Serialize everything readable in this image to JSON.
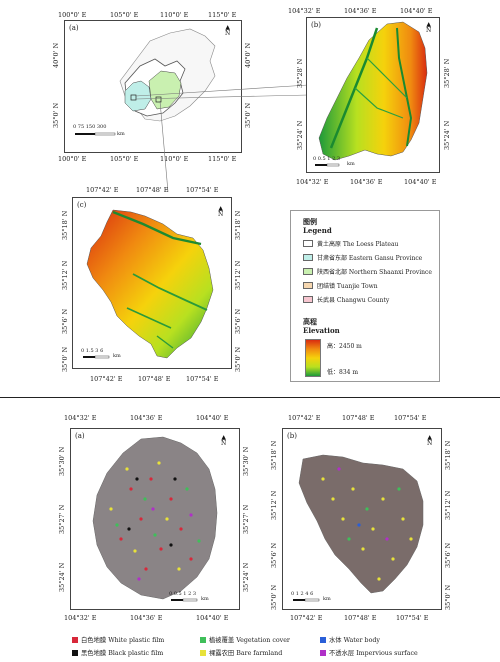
{
  "panel_a_top": {
    "tag": "(a)",
    "lon_top": [
      "100°0' E",
      "105°0' E",
      "110°0' E",
      "115°0' E"
    ],
    "lon_bottom": [
      "100°0' E",
      "105°0' E",
      "110°0' E",
      "115°0' E"
    ],
    "lat_left": [
      "40°0' N",
      "35°0' N"
    ],
    "lat_right": [
      "40°0' N",
      "35°0' N"
    ],
    "scale": "0 75 150     300",
    "scale_unit": "km"
  },
  "panel_b_top": {
    "tag": "(b)",
    "lon_top": [
      "104°32' E",
      "104°36' E",
      "104°40' E"
    ],
    "lon_bottom": [
      "104°32' E",
      "104°36' E",
      "104°40' E"
    ],
    "lat_left": [
      "35°28' N",
      "35°24' N"
    ],
    "lat_right": [
      "35°28' N",
      "35°24' N"
    ],
    "scale": "0 0.5 1   2   3",
    "scale_unit": "km"
  },
  "panel_c_top": {
    "tag": "(c)",
    "lon_top": [
      "107°42' E",
      "107°48' E",
      "107°54' E"
    ],
    "lon_bottom": [
      "107°42' E",
      "107°48' E",
      "107°54' E"
    ],
    "lat_left": [
      "35°18' N",
      "35°12' N",
      "35°6' N",
      "35°0' N"
    ],
    "lat_right": [
      "35°18' N",
      "35°12' N",
      "35°6' N",
      "35°0' N"
    ],
    "scale": "0 1.5 3     6",
    "scale_unit": "km"
  },
  "legend": {
    "title_cn": "图例",
    "title_en": "Legend",
    "items": [
      {
        "label": "黄土高原 The Loess Plateau",
        "color": "#ffffff"
      },
      {
        "label": "甘肃省东部 Eastern Gansu Province",
        "color": "#bfeee8"
      },
      {
        "label": "陕西省北部 Northern Shaanxi Province",
        "color": "#c9f0b0"
      },
      {
        "label": "团结镇 Tuanjie Town",
        "color": "#f6d7b0"
      },
      {
        "label": "长武县 Changwu County",
        "color": "#f7c6d0"
      }
    ],
    "elev_cn": "高程",
    "elev_en": "Elevation",
    "high": "高：2450 m",
    "low": "低：834 m"
  },
  "panel_a_bottom": {
    "tag": "(a)",
    "lon_top": [
      "104°32' E",
      "104°36' E",
      "104°40' E"
    ],
    "lon_bottom": [
      "104°32' E",
      "104°36' E",
      "104°40' E"
    ],
    "lat_left": [
      "35°30' N",
      "35°27' N",
      "35°24' N"
    ],
    "lat_right": [
      "35°30' N",
      "35°27' N",
      "35°24' N"
    ],
    "scale": "0 0.5 1   2   3",
    "scale_unit": "km"
  },
  "panel_b_bottom": {
    "tag": "(b)",
    "lon_top": [
      "107°42' E",
      "107°48' E",
      "107°54' E"
    ],
    "lon_bottom": [
      "107°42' E",
      "107°48' E",
      "107°54' E"
    ],
    "lat_left": [
      "35°18' N",
      "35°12' N",
      "35°6' N",
      "35°0' N"
    ],
    "lat_right": [
      "35°18' N",
      "35°12' N",
      "35°6' N",
      "35°0' N"
    ],
    "scale": "0 1 2   4   6",
    "scale_unit": "km"
  },
  "bottom_legend": [
    {
      "label": "白色地膜 White plastic film",
      "color": "#d8283a"
    },
    {
      "label": "植被覆盖 Vegetation cover",
      "color": "#3fbf5a"
    },
    {
      "label": "水体 Water body",
      "color": "#2a5fd8"
    },
    {
      "label": "黑色地膜 Black plastic film",
      "color": "#111111"
    },
    {
      "label": "裸露农田 Bare farmland",
      "color": "#e8e23a"
    },
    {
      "label": "不透水层 Impervious surface",
      "color": "#b030c8"
    }
  ],
  "north_symbol": "N"
}
